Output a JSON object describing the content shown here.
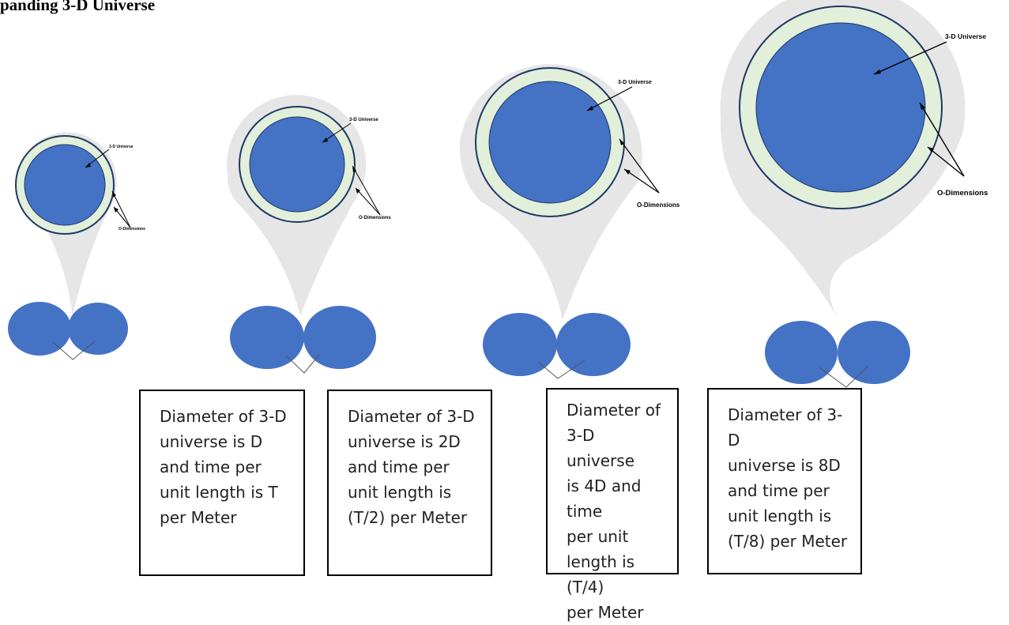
{
  "title": "panding 3-D Universe",
  "colors": {
    "universe_fill": "#4472c4",
    "universe_outline": "#1f3864",
    "o_dimension_ring": "#e2efda",
    "cone_shade": "#e6e6e6",
    "box_border": "#000000"
  },
  "stages": [
    {
      "universe_label": "3-D Universe",
      "o_dimensions_label": "O-Dimensions",
      "caption": "Diameter of 3-D\nuniverse is D\nand time per\nunit length is T\nper Meter"
    },
    {
      "universe_label": "3-D Universe",
      "o_dimensions_label": "O-Dimensions",
      "caption": "Diameter of 3-D\nuniverse is 2D\nand time per\nunit length is\n(T/2) per Meter"
    },
    {
      "universe_label": "3-D Universe",
      "o_dimensions_label": "O-Dimensions",
      "caption": "Diameter of\n3-D universe\nis 4D and time\nper unit\nlength is (T/4)\nper Meter"
    },
    {
      "universe_label": "3-D Universe",
      "o_dimensions_label": "O-Dimensions",
      "caption": "Diameter of 3-D\nuniverse is 8D\nand time per\nunit length is\n(T/8) per Meter"
    }
  ]
}
